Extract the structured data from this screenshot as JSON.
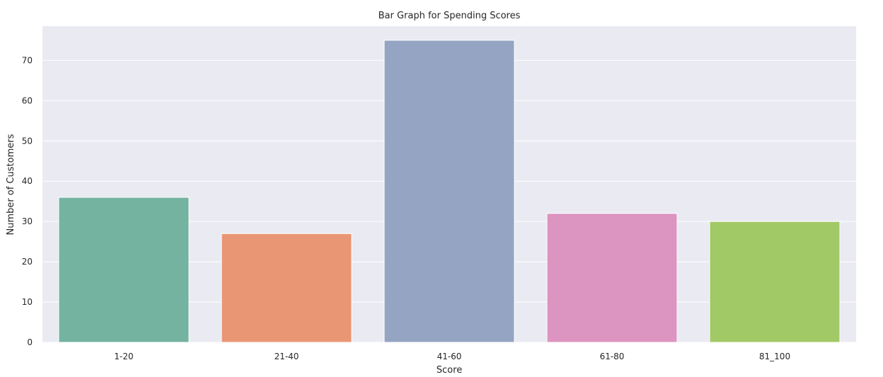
{
  "chart_data": {
    "type": "bar",
    "title": "Bar Graph for Spending Scores",
    "xlabel": "Score",
    "ylabel": "Number of Customers",
    "categories": [
      "1-20",
      "21-40",
      "41-60",
      "61-80",
      "81_100"
    ],
    "values": [
      36,
      27,
      75,
      32,
      30
    ],
    "colors": [
      "#73b3a0",
      "#e99674",
      "#94a4c2",
      "#dc94c0",
      "#a1c966"
    ],
    "ylim": [
      0,
      78.5
    ],
    "yticks": [
      0,
      10,
      20,
      30,
      40,
      50,
      60,
      70
    ],
    "ytick_labels": [
      "0",
      "10",
      "20",
      "30",
      "40",
      "50",
      "60",
      "70"
    ],
    "grid": true,
    "background": "#eaeaf2",
    "grid_color": "#ffffff"
  }
}
